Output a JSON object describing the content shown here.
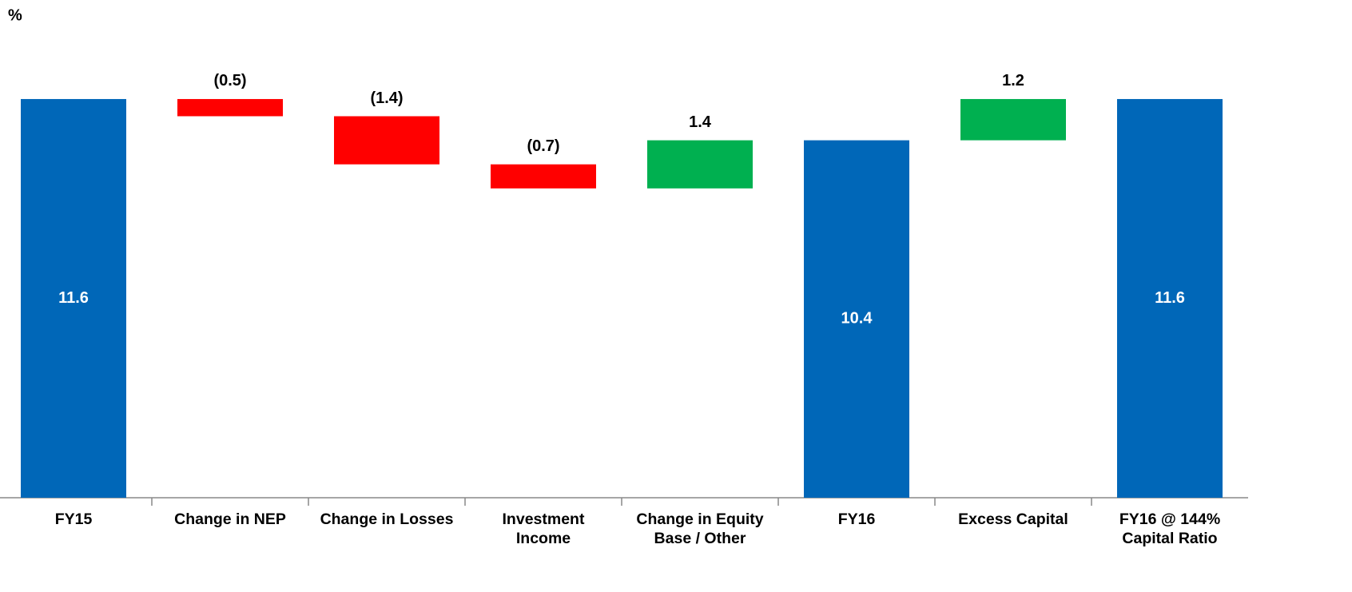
{
  "chart_data": {
    "type": "waterfall",
    "y_label": "%",
    "categories": [
      "FY15",
      "Change in NEP",
      "Change in Losses",
      "Investment\nIncome",
      "Change in Equity\nBase / Other",
      "FY16",
      "Excess Capital",
      "FY16 @ 144%\nCapital Ratio"
    ],
    "values": [
      11.6,
      -0.5,
      -1.4,
      -0.7,
      1.4,
      10.4,
      1.2,
      11.6
    ],
    "value_labels": [
      "11.6",
      "(0.5)",
      "(1.4)",
      "(0.7)",
      "1.4",
      "10.4",
      "1.2",
      "11.6"
    ],
    "bar_kinds": [
      "total",
      "delta",
      "delta",
      "delta",
      "delta",
      "total",
      "delta",
      "total"
    ],
    "colors": {
      "total": "#0067b8",
      "increase": "#00b050",
      "decrease": "#ff0000"
    },
    "ylim": [
      0,
      14
    ]
  }
}
